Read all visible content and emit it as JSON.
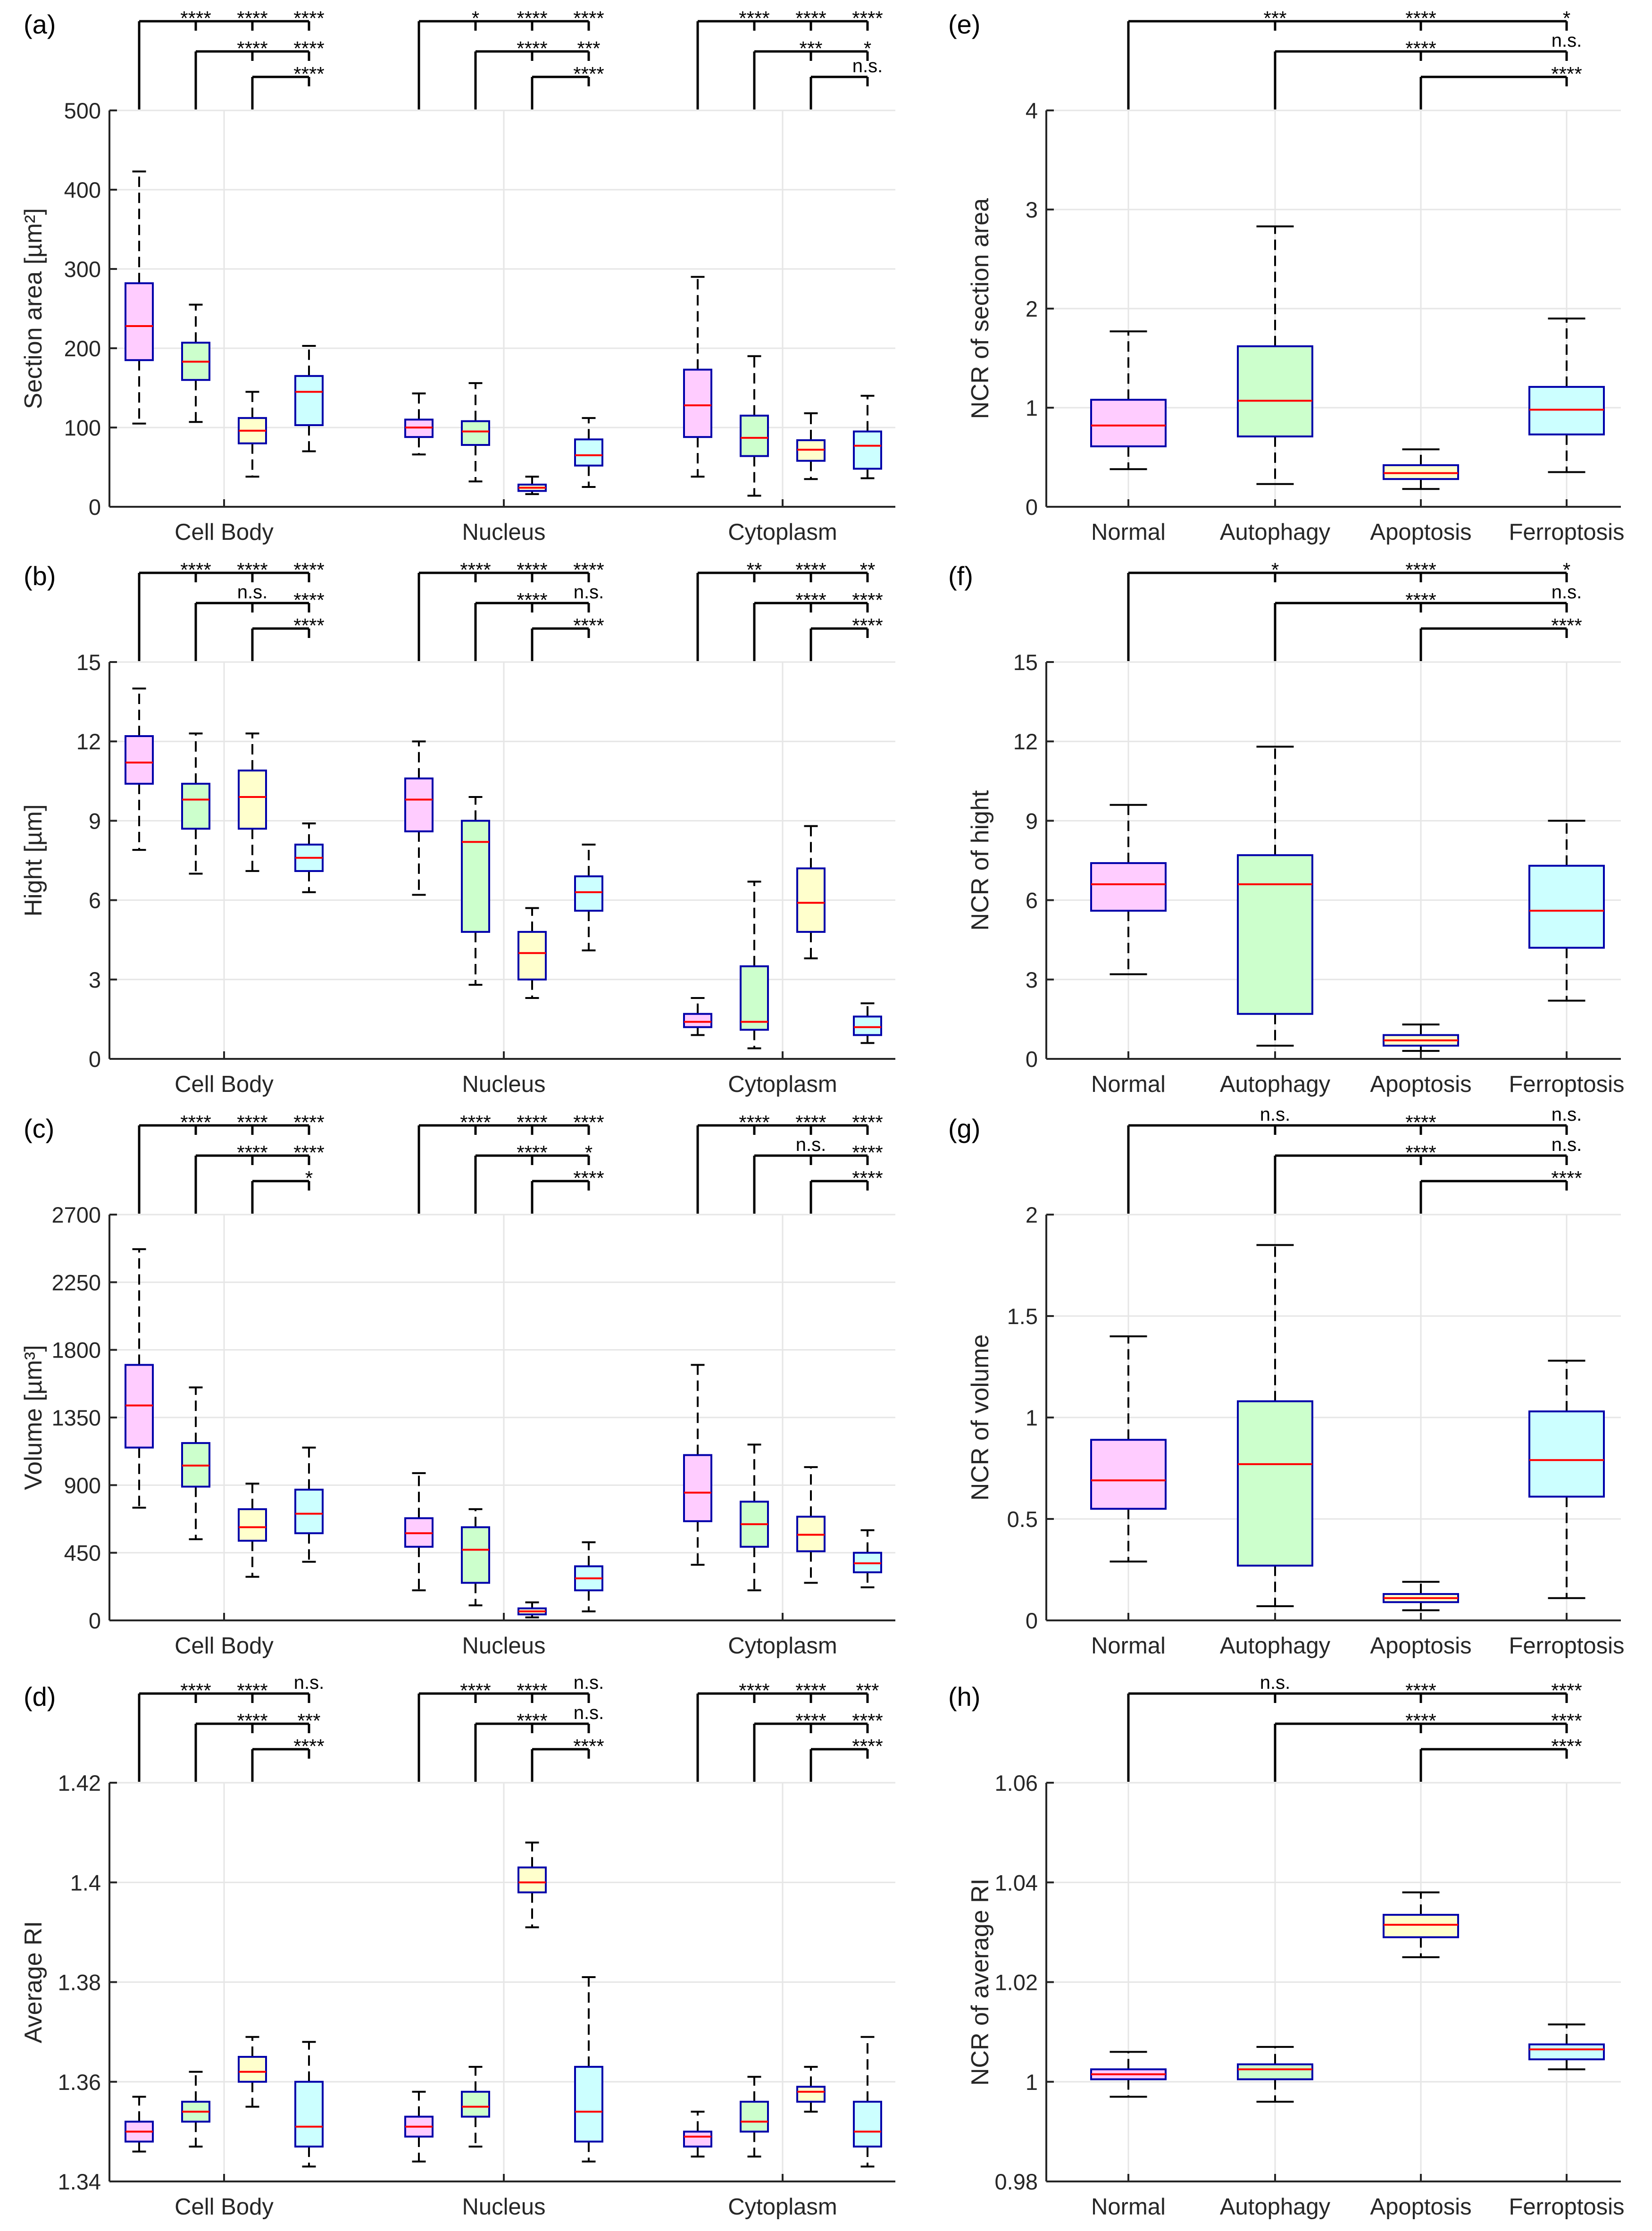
{
  "figure": {
    "description": "Box plots of cell morphology and refractive-index parameters",
    "colors": {
      "Normal": "#ffccff",
      "Autophagy": "#ccffcc",
      "Apoptosis": "#ffffcc",
      "Ferroptosis": "#ccffff",
      "median": "#ff0000",
      "box_edge": "#0000aa",
      "whisker": "#000000",
      "grid": "#e6e6e6",
      "axis": "#262626"
    }
  },
  "chart_data": [
    {
      "panel": "(a)",
      "type": "box",
      "ylabel": "Section area [µm²]",
      "ylim": [
        0,
        500
      ],
      "yticks": [
        0,
        100,
        200,
        300,
        400,
        500
      ],
      "yticklabels": [
        "0",
        "100",
        "200",
        "300",
        "400",
        "500"
      ],
      "categories": [
        "Cell Body",
        "Nucleus",
        "Cytoplasm"
      ],
      "series_order": [
        "Normal",
        "Autophagy",
        "Apoptosis",
        "Ferroptosis"
      ],
      "boxes": [
        [
          [
            105,
            185,
            228,
            282,
            423
          ],
          [
            107,
            160,
            183,
            207,
            255
          ],
          [
            38,
            80,
            96,
            112,
            145
          ],
          [
            70,
            103,
            145,
            165,
            203
          ]
        ],
        [
          [
            66,
            88,
            100,
            110,
            143
          ],
          [
            32,
            78,
            95,
            108,
            156
          ],
          [
            16,
            20,
            24,
            28,
            38
          ],
          [
            25,
            52,
            65,
            85,
            112
          ]
        ],
        [
          [
            38,
            88,
            128,
            173,
            290
          ],
          [
            14,
            64,
            87,
            115,
            190
          ],
          [
            35,
            58,
            72,
            84,
            118
          ],
          [
            36,
            48,
            77,
            95,
            140
          ]
        ]
      ],
      "significance": [
        [
          {
            "level": 1,
            "labels": [
              "****",
              "****",
              "****"
            ]
          },
          {
            "level": 2,
            "labels": [
              "****",
              "****"
            ]
          },
          {
            "level": 3,
            "labels": [
              "****"
            ]
          }
        ],
        [
          {
            "level": 1,
            "labels": [
              "*",
              "****",
              "****"
            ]
          },
          {
            "level": 2,
            "labels": [
              "****",
              "***"
            ]
          },
          {
            "level": 3,
            "labels": [
              "****"
            ]
          }
        ],
        [
          {
            "level": 1,
            "labels": [
              "****",
              "****",
              "****"
            ]
          },
          {
            "level": 2,
            "labels": [
              "***",
              "*"
            ]
          },
          {
            "level": 3,
            "labels": [
              "n.s."
            ]
          }
        ]
      ]
    },
    {
      "panel": "(e)",
      "type": "box",
      "ylabel": "NCR of section area",
      "ylim": [
        0,
        4
      ],
      "yticks": [
        0,
        1,
        2,
        3,
        4
      ],
      "yticklabels": [
        "0",
        "1",
        "2",
        "3",
        "4"
      ],
      "categories": [
        "Normal",
        "Autophagy",
        "Apoptosis",
        "Ferroptosis"
      ],
      "boxes": [
        [
          0.38,
          0.61,
          0.82,
          1.08,
          1.77
        ],
        [
          0.23,
          0.71,
          1.07,
          1.62,
          2.83
        ],
        [
          0.18,
          0.28,
          0.34,
          0.42,
          0.58
        ],
        [
          0.35,
          0.73,
          0.98,
          1.21,
          1.9
        ]
      ],
      "significance": [
        {
          "level": 1,
          "labels": [
            "***",
            "****",
            "*"
          ]
        },
        {
          "level": 2,
          "labels": [
            "****",
            "n.s."
          ]
        },
        {
          "level": 3,
          "labels": [
            "****"
          ]
        }
      ]
    },
    {
      "panel": "(b)",
      "type": "box",
      "ylabel": "Hight [µm]",
      "ylim": [
        0,
        15
      ],
      "yticks": [
        0,
        3,
        6,
        9,
        12,
        15
      ],
      "yticklabels": [
        "0",
        "3",
        "6",
        "9",
        "12",
        "15"
      ],
      "categories": [
        "Cell Body",
        "Nucleus",
        "Cytoplasm"
      ],
      "series_order": [
        "Normal",
        "Autophagy",
        "Apoptosis",
        "Ferroptosis"
      ],
      "boxes": [
        [
          [
            7.9,
            10.4,
            11.2,
            12.2,
            14.0
          ],
          [
            7.0,
            8.7,
            9.8,
            10.4,
            12.3
          ],
          [
            7.1,
            8.7,
            9.9,
            10.9,
            12.3
          ],
          [
            6.3,
            7.1,
            7.6,
            8.1,
            8.9
          ]
        ],
        [
          [
            6.2,
            8.6,
            9.8,
            10.6,
            12.0
          ],
          [
            2.8,
            4.8,
            8.2,
            9.0,
            9.9
          ],
          [
            2.3,
            3.0,
            4.0,
            4.8,
            5.7
          ],
          [
            4.1,
            5.6,
            6.3,
            6.9,
            8.1
          ]
        ],
        [
          [
            0.9,
            1.2,
            1.4,
            1.7,
            2.3
          ],
          [
            0.4,
            1.1,
            1.4,
            3.5,
            6.7
          ],
          [
            3.8,
            4.8,
            5.9,
            7.2,
            8.8
          ],
          [
            0.6,
            0.9,
            1.2,
            1.6,
            2.1
          ]
        ]
      ],
      "significance": [
        [
          {
            "level": 1,
            "labels": [
              "****",
              "****",
              "****"
            ]
          },
          {
            "level": 2,
            "labels": [
              "n.s.",
              "****"
            ]
          },
          {
            "level": 3,
            "labels": [
              "****"
            ]
          }
        ],
        [
          {
            "level": 1,
            "labels": [
              "****",
              "****",
              "****"
            ]
          },
          {
            "level": 2,
            "labels": [
              "****",
              "n.s."
            ]
          },
          {
            "level": 3,
            "labels": [
              "****"
            ]
          }
        ],
        [
          {
            "level": 1,
            "labels": [
              "**",
              "****",
              "**"
            ]
          },
          {
            "level": 2,
            "labels": [
              "****",
              "****"
            ]
          },
          {
            "level": 3,
            "labels": [
              "****"
            ]
          }
        ]
      ]
    },
    {
      "panel": "(f)",
      "type": "box",
      "ylabel": "NCR of hight",
      "ylim": [
        0,
        15
      ],
      "yticks": [
        0,
        3,
        6,
        9,
        12,
        15
      ],
      "yticklabels": [
        "0",
        "3",
        "6",
        "9",
        "12",
        "15"
      ],
      "categories": [
        "Normal",
        "Autophagy",
        "Apoptosis",
        "Ferroptosis"
      ],
      "boxes": [
        [
          3.2,
          5.6,
          6.6,
          7.4,
          9.6
        ],
        [
          0.5,
          1.7,
          6.6,
          7.7,
          11.8
        ],
        [
          0.3,
          0.5,
          0.7,
          0.9,
          1.3
        ],
        [
          2.2,
          4.2,
          5.6,
          7.3,
          9.0
        ]
      ],
      "significance": [
        {
          "level": 1,
          "labels": [
            "*",
            "****",
            "*"
          ]
        },
        {
          "level": 2,
          "labels": [
            "****",
            "n.s."
          ]
        },
        {
          "level": 3,
          "labels": [
            "****"
          ]
        }
      ]
    },
    {
      "panel": "(c)",
      "type": "box",
      "ylabel": "Volume [µm³]",
      "ylim": [
        0,
        2700
      ],
      "yticks": [
        0,
        450,
        900,
        1350,
        1800,
        2250,
        2700
      ],
      "yticklabels": [
        "0",
        "450",
        "900",
        "1350",
        "1800",
        "2250",
        "2700"
      ],
      "categories": [
        "Cell Body",
        "Nucleus",
        "Cytoplasm"
      ],
      "series_order": [
        "Normal",
        "Autophagy",
        "Apoptosis",
        "Ferroptosis"
      ],
      "boxes": [
        [
          [
            750,
            1150,
            1430,
            1700,
            2470
          ],
          [
            540,
            890,
            1030,
            1180,
            1550
          ],
          [
            290,
            530,
            620,
            740,
            910
          ],
          [
            390,
            580,
            710,
            870,
            1150
          ]
        ],
        [
          [
            200,
            490,
            580,
            680,
            980
          ],
          [
            100,
            250,
            470,
            620,
            740
          ],
          [
            20,
            40,
            60,
            80,
            120
          ],
          [
            60,
            200,
            280,
            360,
            520
          ]
        ],
        [
          [
            370,
            660,
            850,
            1100,
            1700
          ],
          [
            200,
            490,
            640,
            790,
            1170
          ],
          [
            250,
            460,
            570,
            690,
            1020
          ],
          [
            220,
            320,
            380,
            450,
            600
          ]
        ]
      ],
      "significance": [
        [
          {
            "level": 1,
            "labels": [
              "****",
              "****",
              "****"
            ]
          },
          {
            "level": 2,
            "labels": [
              "****",
              "****"
            ]
          },
          {
            "level": 3,
            "labels": [
              "*"
            ]
          }
        ],
        [
          {
            "level": 1,
            "labels": [
              "****",
              "****",
              "****"
            ]
          },
          {
            "level": 2,
            "labels": [
              "****",
              "*"
            ]
          },
          {
            "level": 3,
            "labels": [
              "****"
            ]
          }
        ],
        [
          {
            "level": 1,
            "labels": [
              "****",
              "****",
              "****"
            ]
          },
          {
            "level": 2,
            "labels": [
              "n.s.",
              "****"
            ]
          },
          {
            "level": 3,
            "labels": [
              "****"
            ]
          }
        ]
      ]
    },
    {
      "panel": "(g)",
      "type": "box",
      "ylabel": "NCR of volume",
      "ylim": [
        0,
        2
      ],
      "yticks": [
        0,
        0.5,
        1,
        1.5,
        2
      ],
      "yticklabels": [
        "0",
        "0.5",
        "1",
        "1.5",
        "2"
      ],
      "categories": [
        "Normal",
        "Autophagy",
        "Apoptosis",
        "Ferroptosis"
      ],
      "boxes": [
        [
          0.29,
          0.55,
          0.69,
          0.89,
          1.4
        ],
        [
          0.07,
          0.27,
          0.77,
          1.08,
          1.85
        ],
        [
          0.05,
          0.09,
          0.11,
          0.13,
          0.19
        ],
        [
          0.11,
          0.61,
          0.79,
          1.03,
          1.28
        ]
      ],
      "significance": [
        {
          "level": 1,
          "labels": [
            "n.s.",
            "****",
            "n.s."
          ]
        },
        {
          "level": 2,
          "labels": [
            "****",
            "n.s."
          ]
        },
        {
          "level": 3,
          "labels": [
            "****"
          ]
        }
      ]
    },
    {
      "panel": "(d)",
      "type": "box",
      "ylabel": "Average RI",
      "ylim": [
        1.34,
        1.42
      ],
      "yticks": [
        1.34,
        1.36,
        1.38,
        1.4,
        1.42
      ],
      "yticklabels": [
        "1.34",
        "1.36",
        "1.38",
        "1.4",
        "1.42"
      ],
      "categories": [
        "Cell Body",
        "Nucleus",
        "Cytoplasm"
      ],
      "series_order": [
        "Normal",
        "Autophagy",
        "Apoptosis",
        "Ferroptosis"
      ],
      "boxes": [
        [
          [
            1.346,
            1.348,
            1.35,
            1.352,
            1.357
          ],
          [
            1.347,
            1.352,
            1.354,
            1.356,
            1.362
          ],
          [
            1.355,
            1.36,
            1.362,
            1.365,
            1.369
          ],
          [
            1.343,
            1.347,
            1.351,
            1.36,
            1.368
          ]
        ],
        [
          [
            1.344,
            1.349,
            1.351,
            1.353,
            1.358
          ],
          [
            1.347,
            1.353,
            1.355,
            1.358,
            1.363
          ],
          [
            1.391,
            1.398,
            1.4,
            1.403,
            1.408
          ],
          [
            1.344,
            1.348,
            1.354,
            1.363,
            1.381
          ]
        ],
        [
          [
            1.345,
            1.347,
            1.349,
            1.35,
            1.354
          ],
          [
            1.345,
            1.35,
            1.352,
            1.356,
            1.361
          ],
          [
            1.354,
            1.356,
            1.358,
            1.359,
            1.363
          ],
          [
            1.343,
            1.347,
            1.35,
            1.356,
            1.369
          ]
        ]
      ],
      "significance": [
        [
          {
            "level": 1,
            "labels": [
              "****",
              "****",
              "n.s."
            ]
          },
          {
            "level": 2,
            "labels": [
              "****",
              "***"
            ]
          },
          {
            "level": 3,
            "labels": [
              "****"
            ]
          }
        ],
        [
          {
            "level": 1,
            "labels": [
              "****",
              "****",
              "n.s."
            ]
          },
          {
            "level": 2,
            "labels": [
              "****",
              "n.s."
            ]
          },
          {
            "level": 3,
            "labels": [
              "****"
            ]
          }
        ],
        [
          {
            "level": 1,
            "labels": [
              "****",
              "****",
              "***"
            ]
          },
          {
            "level": 2,
            "labels": [
              "****",
              "****"
            ]
          },
          {
            "level": 3,
            "labels": [
              "****"
            ]
          }
        ]
      ]
    },
    {
      "panel": "(h)",
      "type": "box",
      "ylabel": "NCR of average RI",
      "ylim": [
        0.98,
        1.06
      ],
      "yticks": [
        0.98,
        1,
        1.02,
        1.04,
        1.06
      ],
      "yticklabels": [
        "0.98",
        "1",
        "1.02",
        "1.04",
        "1.06"
      ],
      "categories": [
        "Normal",
        "Autophagy",
        "Apoptosis",
        "Ferroptosis"
      ],
      "boxes": [
        [
          0.997,
          1.0005,
          1.0015,
          1.0025,
          1.006
        ],
        [
          0.996,
          1.0005,
          1.0025,
          1.0035,
          1.007
        ],
        [
          1.025,
          1.029,
          1.0315,
          1.0335,
          1.038
        ],
        [
          1.0025,
          1.0045,
          1.0065,
          1.0075,
          1.0115
        ]
      ],
      "significance": [
        {
          "level": 1,
          "labels": [
            "n.s.",
            "****",
            "****"
          ]
        },
        {
          "level": 2,
          "labels": [
            "****",
            "****"
          ]
        },
        {
          "level": 3,
          "labels": [
            "****"
          ]
        }
      ]
    }
  ]
}
